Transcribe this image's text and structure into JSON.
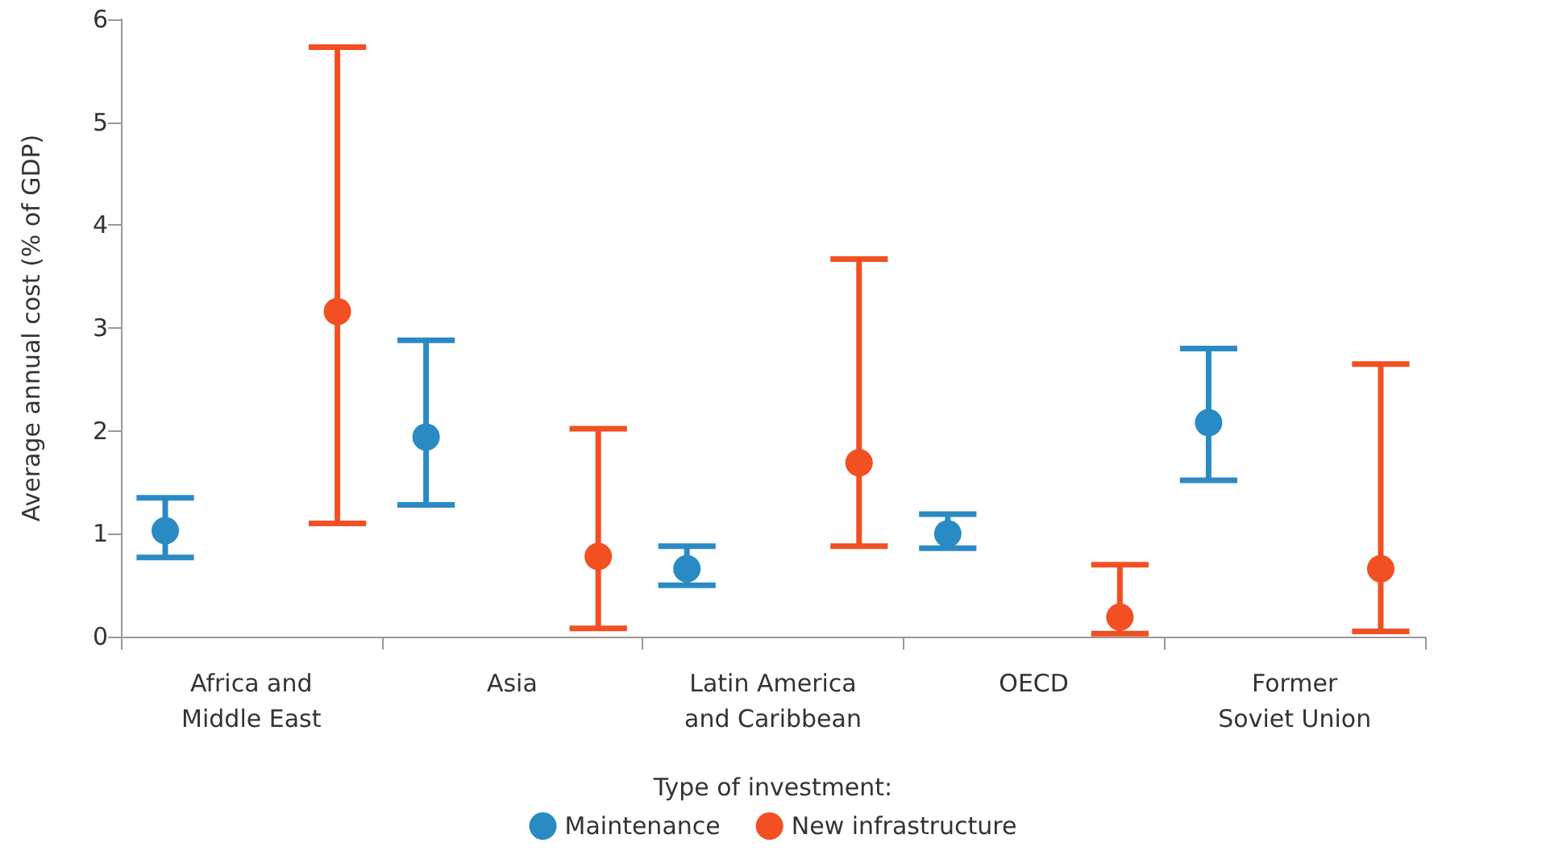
{
  "chart_data": {
    "type": "scatter",
    "ylabel": "Average annual cost (% of GDP)",
    "legend_title": "Type of investment:",
    "categories": [
      "Africa and\nMiddle East",
      "Asia",
      "Latin America\nand Caribbean",
      "OECD",
      "Former\nSoviet Union"
    ],
    "series": [
      {
        "name": "Maintenance",
        "color": "#2a8bc4",
        "values": [
          1.03,
          1.94,
          0.66,
          1.0,
          2.08
        ],
        "errors": [
          [
            0.77,
            1.35
          ],
          [
            1.28,
            2.88
          ],
          [
            0.5,
            0.88
          ],
          [
            0.86,
            1.19
          ],
          [
            1.52,
            2.8
          ]
        ]
      },
      {
        "name": "New infrastructure",
        "color": "#f25022",
        "values": [
          3.16,
          0.78,
          1.69,
          0.19,
          0.66
        ],
        "errors": [
          [
            1.1,
            5.73
          ],
          [
            0.08,
            2.02
          ],
          [
            0.88,
            3.67
          ],
          [
            0.03,
            0.7
          ],
          [
            0.05,
            2.65
          ]
        ]
      }
    ],
    "ylim": [
      0,
      6
    ],
    "yticks": [
      0,
      1,
      2,
      3,
      4,
      5,
      6
    ],
    "grid": false,
    "legend": "bottom",
    "marker": "circle"
  }
}
